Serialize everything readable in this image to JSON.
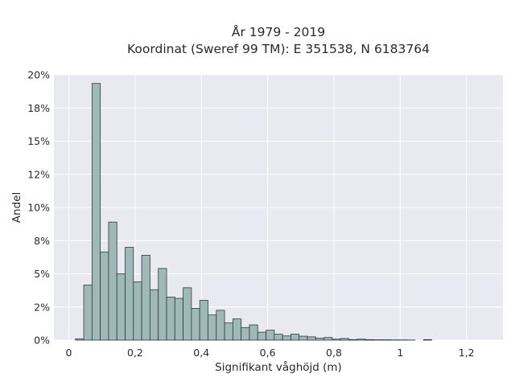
{
  "chart_data": {
    "type": "bar",
    "title_line1": "År 1979 - 2019",
    "title_line2": "Koordinat (Sweref 99 TM): E 351538, N 6183764",
    "xlabel": "Signifikant våghöjd (m)",
    "ylabel": "Andel",
    "xlim": [
      -0.045,
      1.31
    ],
    "ylim": [
      0,
      0.2
    ],
    "xticks": [
      {
        "value": 0.0,
        "label": "0"
      },
      {
        "value": 0.2,
        "label": "0,2"
      },
      {
        "value": 0.4,
        "label": "0,4"
      },
      {
        "value": 0.6,
        "label": "0,6"
      },
      {
        "value": 0.8,
        "label": "0,8"
      },
      {
        "value": 1.0,
        "label": "1"
      },
      {
        "value": 1.2,
        "label": "1,2"
      }
    ],
    "yticks": [
      {
        "value": 0.0,
        "label": "0%"
      },
      {
        "value": 0.025,
        "label": "2%"
      },
      {
        "value": 0.05,
        "label": "5%"
      },
      {
        "value": 0.075,
        "label": "8%"
      },
      {
        "value": 0.1,
        "label": "10%"
      },
      {
        "value": 0.125,
        "label": "12%"
      },
      {
        "value": 0.15,
        "label": "15%"
      },
      {
        "value": 0.175,
        "label": "18%"
      },
      {
        "value": 0.2,
        "label": "20%"
      }
    ],
    "bin_start": 0.02,
    "bin_width": 0.025,
    "values": [
      0.001,
      0.0415,
      0.1935,
      0.0665,
      0.089,
      0.05,
      0.07,
      0.044,
      0.064,
      0.038,
      0.054,
      0.0325,
      0.0315,
      0.0395,
      0.024,
      0.03,
      0.019,
      0.0225,
      0.013,
      0.016,
      0.0095,
      0.0115,
      0.006,
      0.0075,
      0.0045,
      0.0032,
      0.0045,
      0.003,
      0.0025,
      0.0015,
      0.002,
      0.0008,
      0.0013,
      0.0004,
      0.0008,
      0.0004,
      0.0003,
      0.0003,
      0.0002,
      0.0002,
      0.0001,
      0.0,
      0.0004
    ]
  }
}
